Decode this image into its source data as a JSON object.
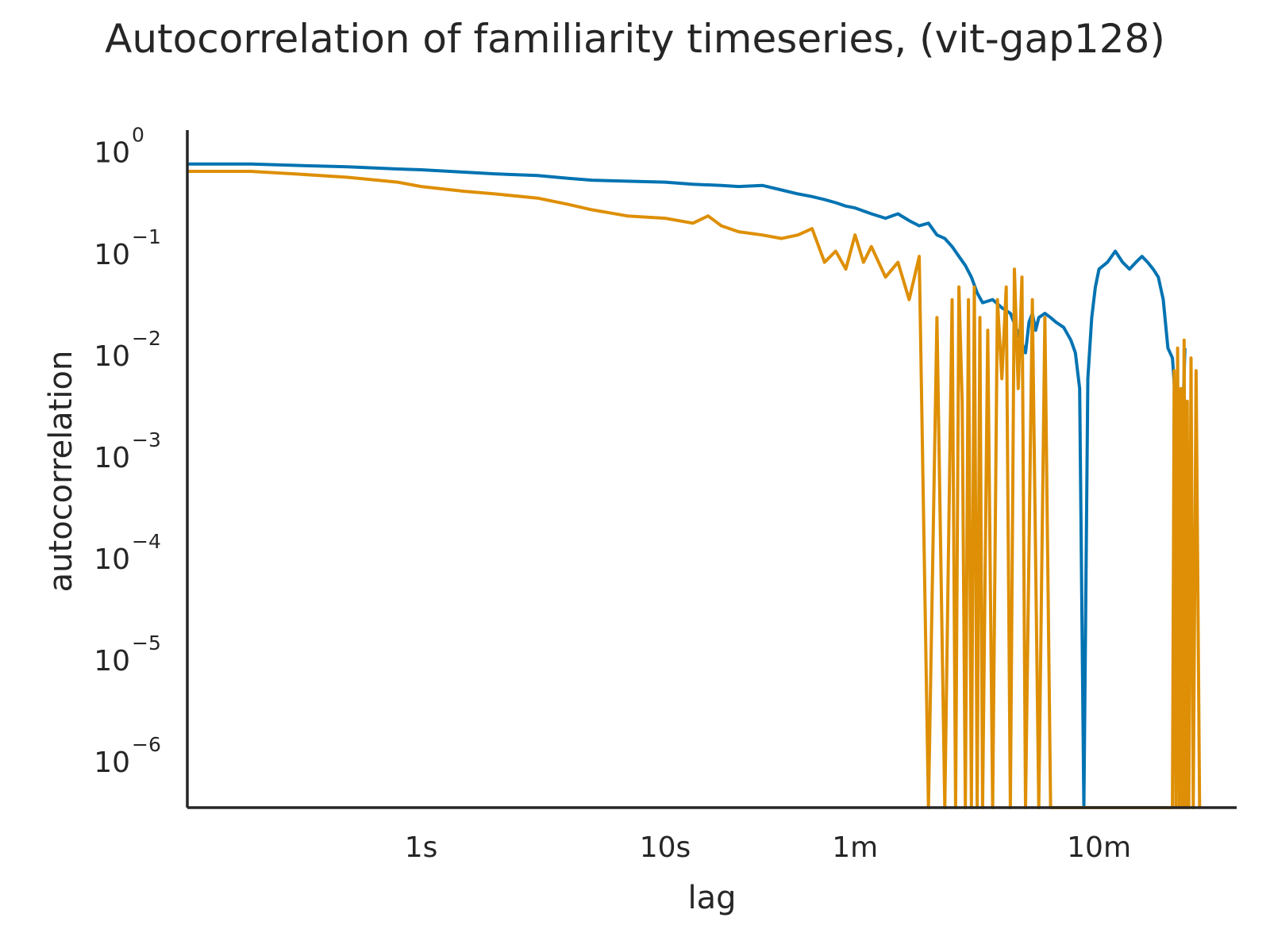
{
  "chart_data": {
    "type": "line",
    "title": "Autocorrelation of familiarity timeseries, (vit-gap128)",
    "xlabel": "lag",
    "ylabel": "autocorrelation",
    "x_scale": "log",
    "y_scale": "log",
    "x_unit": "seconds",
    "xlim": [
      0.11,
      2200
    ],
    "ylim": [
      3e-07,
      1.4
    ],
    "grid": false,
    "legend": "none",
    "x_ticks": [
      {
        "value": 1,
        "label": "1s"
      },
      {
        "value": 10,
        "label": "10s"
      },
      {
        "value": 60,
        "label": "1m"
      },
      {
        "value": 600,
        "label": "10m"
      }
    ],
    "y_ticks": [
      {
        "value": 1,
        "base": "10",
        "exp": "0"
      },
      {
        "value": 0.1,
        "base": "10",
        "exp": "−1"
      },
      {
        "value": 0.01,
        "base": "10",
        "exp": "−2"
      },
      {
        "value": 0.001,
        "base": "10",
        "exp": "−3"
      },
      {
        "value": 0.0001,
        "base": "10",
        "exp": "−4"
      },
      {
        "value": 1e-05,
        "base": "10",
        "exp": "−5"
      },
      {
        "value": 1e-06,
        "base": "10",
        "exp": "−6"
      }
    ],
    "series": [
      {
        "color": "#0173b2",
        "x": [
          0.11,
          0.2,
          0.3,
          0.5,
          0.8,
          1.0,
          1.5,
          2.0,
          3.0,
          4.0,
          5.0,
          7.0,
          10.0,
          13.0,
          17.0,
          20.0,
          25.0,
          30.0,
          35.0,
          40.0,
          45.0,
          50.0,
          55.0,
          60.0,
          70.0,
          80.0,
          90.0,
          100.0,
          110.0,
          120.0,
          130.0,
          140.0,
          150.0,
          160.0,
          170.0,
          180.0,
          190.0,
          200.0,
          220.0,
          240.0,
          260.0,
          280.0,
          300.0,
          310.0,
          320.0,
          330.0,
          340.0,
          360.0,
          380.0,
          400.0,
          430.0,
          460.0,
          480.0,
          500.0,
          520.0,
          540.0,
          560.0,
          580.0,
          600.0,
          650.0,
          700.0,
          750.0,
          800.0,
          850.0,
          900.0,
          950.0,
          1000.0,
          1050.0,
          1100.0,
          1150.0,
          1200.0,
          1250.0,
          1300.0,
          1350.0
        ],
        "y": [
          0.65,
          0.65,
          0.63,
          0.61,
          0.58,
          0.57,
          0.54,
          0.52,
          0.5,
          0.47,
          0.45,
          0.44,
          0.43,
          0.41,
          0.4,
          0.39,
          0.4,
          0.36,
          0.33,
          0.31,
          0.29,
          0.27,
          0.25,
          0.24,
          0.21,
          0.19,
          0.21,
          0.18,
          0.16,
          0.17,
          0.13,
          0.12,
          0.1,
          0.08,
          0.065,
          0.05,
          0.035,
          0.028,
          0.03,
          0.025,
          0.022,
          0.014,
          0.009,
          0.018,
          0.022,
          0.015,
          0.02,
          0.022,
          0.02,
          0.018,
          0.016,
          0.012,
          0.009,
          0.004,
          3e-07,
          0.005,
          0.02,
          0.04,
          0.06,
          0.07,
          0.09,
          0.07,
          0.06,
          0.07,
          0.08,
          0.07,
          0.06,
          0.05,
          0.03,
          0.01,
          0.008,
          0.002,
          0.0005,
          0.01
        ]
      },
      {
        "color": "#de8f05",
        "x": [
          0.11,
          0.2,
          0.3,
          0.5,
          0.8,
          1.0,
          1.5,
          2.0,
          3.0,
          4.0,
          5.0,
          7.0,
          10.0,
          13.0,
          15.0,
          17.0,
          20.0,
          25.0,
          30.0,
          35.0,
          40.0,
          45.0,
          50.0,
          55.0,
          60.0,
          65.0,
          70.0,
          80.0,
          90.0,
          100.0,
          110.0,
          120.0,
          130.0,
          140.0,
          150.0,
          155.0,
          160.0,
          165.0,
          170.0,
          175.0,
          180.0,
          185.0,
          190.0,
          195.0,
          200.0,
          210.0,
          220.0,
          230.0,
          240.0,
          250.0,
          260.0,
          270.0,
          280.0,
          290.0,
          300.0,
          320.0,
          340.0,
          360.0,
          380.0,
          400.0,
          420.0,
          440.0,
          460.0,
          470.0,
          480.0,
          490.0,
          500.0,
          520.0,
          540.0,
          560.0,
          580.0,
          600.0,
          1200.0,
          1220.0,
          1240.0,
          1260.0,
          1280.0,
          1300.0,
          1320.0,
          1340.0,
          1360.0,
          1380.0,
          1400.0,
          1430.0,
          1460.0,
          1500.0,
          1550.0
        ],
        "y": [
          0.55,
          0.55,
          0.52,
          0.48,
          0.43,
          0.39,
          0.35,
          0.33,
          0.3,
          0.26,
          0.23,
          0.2,
          0.19,
          0.17,
          0.2,
          0.16,
          0.14,
          0.13,
          0.12,
          0.13,
          0.15,
          0.07,
          0.09,
          0.06,
          0.13,
          0.07,
          0.1,
          0.05,
          0.07,
          0.03,
          0.08,
          3e-07,
          0.02,
          3e-07,
          0.03,
          3e-07,
          0.04,
          0.003,
          3e-07,
          0.03,
          3e-07,
          0.04,
          3e-07,
          0.02,
          3e-07,
          0.015,
          3e-07,
          0.03,
          0.005,
          0.04,
          3e-07,
          0.06,
          0.004,
          0.05,
          3e-07,
          0.03,
          3e-07,
          0.02,
          3e-07,
          3e-07,
          3e-07,
          3e-07,
          3e-07,
          3e-07,
          3e-07,
          3e-07,
          3e-07,
          3e-07,
          3e-07,
          3e-07,
          3e-07,
          3e-07,
          3e-07,
          0.006,
          3e-07,
          0.01,
          3e-07,
          0.004,
          3e-07,
          0.012,
          3e-07,
          0.003,
          3e-07,
          0.008,
          3e-07,
          0.006,
          3e-07
        ]
      }
    ]
  }
}
